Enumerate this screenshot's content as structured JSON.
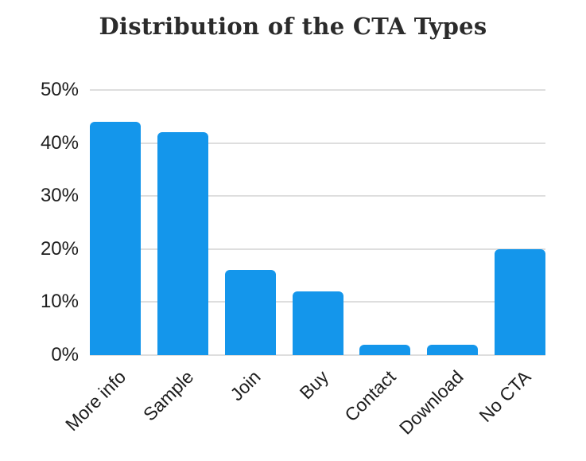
{
  "title": "Distribution of the CTA Types",
  "colors": {
    "background": "#ffffff",
    "bar": "#1496eb",
    "gridline": "#dedede",
    "axis_text": "#1d1d1d",
    "title_text": "#2b2b2b"
  },
  "chart_data": {
    "type": "bar",
    "title": "Distribution of the CTA Types",
    "categories": [
      "More info",
      "Sample",
      "Join",
      "Buy",
      "Contact",
      "Download",
      "No CTA"
    ],
    "values": [
      44,
      42,
      16,
      12,
      2,
      2,
      20
    ],
    "unit": "%",
    "xlabel": "",
    "ylabel": "",
    "ylim": [
      0,
      50
    ],
    "ytick_interval": 10,
    "ytick_labels": [
      "0%",
      "10%",
      "20%",
      "30%",
      "40%",
      "50%"
    ],
    "grid": "horizontal",
    "legend": "none",
    "x_label_rotation_deg": -45
  }
}
